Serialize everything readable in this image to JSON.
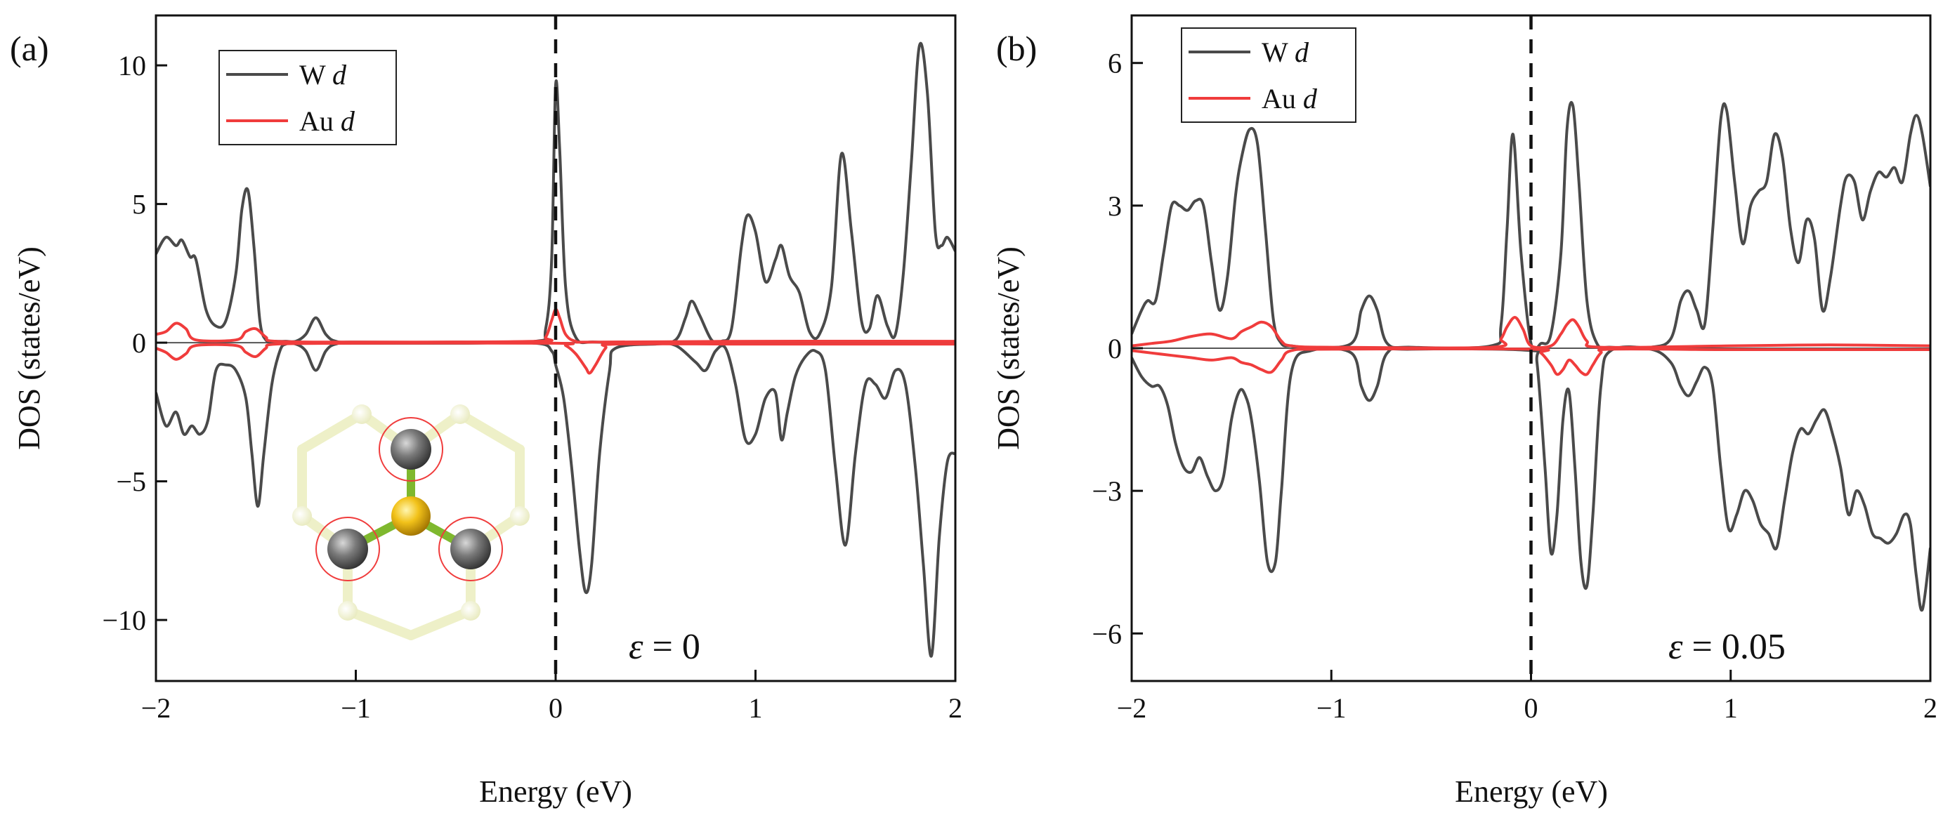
{
  "chart_data": [
    {
      "type": "line",
      "panel_label": "(a)",
      "title": "",
      "xlabel": "Energy (eV)",
      "ylabel": "DOS (states/eV)",
      "xlim": [
        -2,
        2
      ],
      "ylim": [
        -12.2,
        11.8
      ],
      "xticks": [
        -2,
        -1,
        0,
        1,
        2
      ],
      "xtick_labels": [
        "−2",
        "−1",
        "0",
        "1",
        "2"
      ],
      "yticks": [
        -10,
        -5,
        0,
        5,
        10
      ],
      "ytick_labels": [
        "−10",
        "−5",
        "0",
        "5",
        "10"
      ],
      "fermi_level": 0,
      "annotation": {
        "symbol": "ε",
        "text": " = 0"
      },
      "legend_position": "top-left",
      "inset": "top view of Au atom bonded to three W atoms (W atoms circled)",
      "series": [
        {
          "name": "W d",
          "legend_main": "W ",
          "legend_italic": "d",
          "color": "#4a4a4a",
          "spin": "up",
          "x": [
            -2.0,
            -1.95,
            -1.9,
            -1.87,
            -1.83,
            -1.8,
            -1.75,
            -1.7,
            -1.65,
            -1.6,
            -1.57,
            -1.54,
            -1.51,
            -1.48,
            -1.45,
            -1.4,
            -1.35,
            -1.3,
            -1.25,
            -1.2,
            -1.15,
            -1.1,
            -1.0,
            -0.5,
            -0.1,
            -0.05,
            -0.02,
            0.0,
            0.02,
            0.05,
            0.1,
            0.2,
            0.5,
            0.6,
            0.65,
            0.68,
            0.72,
            0.78,
            0.83,
            0.88,
            0.93,
            0.96,
            1.0,
            1.05,
            1.1,
            1.13,
            1.17,
            1.22,
            1.27,
            1.32,
            1.38,
            1.43,
            1.48,
            1.53,
            1.57,
            1.61,
            1.66,
            1.7,
            1.74,
            1.78,
            1.82,
            1.86,
            1.9,
            1.93,
            1.96,
            2.0
          ],
          "y": [
            3.2,
            3.8,
            3.5,
            3.7,
            3.1,
            3.0,
            1.2,
            0.6,
            0.8,
            2.5,
            4.8,
            5.5,
            3.5,
            0.8,
            0.1,
            0.05,
            0.05,
            0.05,
            0.3,
            0.9,
            0.3,
            0.05,
            0.02,
            0.02,
            0.05,
            0.5,
            3.0,
            9.3,
            7.0,
            2.0,
            0.2,
            0.02,
            0.02,
            0.1,
            0.9,
            1.5,
            1.0,
            0.1,
            0.05,
            0.5,
            3.5,
            4.6,
            4.0,
            2.2,
            3.0,
            3.5,
            2.4,
            1.8,
            0.4,
            0.3,
            2.0,
            6.8,
            4.0,
            0.8,
            0.5,
            1.7,
            0.6,
            0.3,
            2.5,
            6.5,
            10.7,
            9.0,
            4.0,
            3.5,
            3.8,
            3.3
          ]
        },
        {
          "name": "W d (spin down)",
          "color": "#4a4a4a",
          "spin": "down",
          "x": [
            -2.0,
            -1.95,
            -1.9,
            -1.86,
            -1.82,
            -1.78,
            -1.74,
            -1.7,
            -1.65,
            -1.6,
            -1.55,
            -1.52,
            -1.49,
            -1.46,
            -1.42,
            -1.38,
            -1.35,
            -1.3,
            -1.25,
            -1.2,
            -1.15,
            -1.1,
            -1.0,
            -0.5,
            -0.1,
            -0.02,
            0.0,
            0.04,
            0.08,
            0.12,
            0.15,
            0.18,
            0.22,
            0.27,
            0.3,
            0.5,
            0.6,
            0.7,
            0.75,
            0.8,
            0.85,
            0.9,
            0.95,
            1.0,
            1.05,
            1.1,
            1.13,
            1.16,
            1.2,
            1.25,
            1.3,
            1.35,
            1.4,
            1.45,
            1.5,
            1.55,
            1.6,
            1.65,
            1.7,
            1.75,
            1.8,
            1.84,
            1.88,
            1.92,
            1.96,
            2.0
          ],
          "y": [
            -1.8,
            -3.0,
            -2.5,
            -3.3,
            -3.0,
            -3.3,
            -2.8,
            -1.0,
            -0.8,
            -1.0,
            -2.0,
            -4.0,
            -5.9,
            -4.0,
            -1.5,
            -0.3,
            -0.05,
            -0.05,
            -0.3,
            -1.0,
            -0.3,
            -0.05,
            -0.02,
            -0.02,
            -0.02,
            -0.3,
            -0.8,
            -2.0,
            -4.5,
            -7.5,
            -9.0,
            -8.0,
            -4.0,
            -1.0,
            -0.2,
            -0.05,
            -0.1,
            -0.7,
            -1.0,
            -0.3,
            -0.2,
            -1.5,
            -3.5,
            -3.3,
            -2.0,
            -1.8,
            -3.5,
            -2.5,
            -1.2,
            -0.5,
            -0.3,
            -1.0,
            -4.5,
            -7.3,
            -4.0,
            -1.5,
            -1.5,
            -2.0,
            -1.0,
            -1.5,
            -4.5,
            -8.0,
            -11.3,
            -7.0,
            -4.3,
            -4.0
          ]
        },
        {
          "name": "Au d",
          "legend_main": "Au ",
          "legend_italic": "d",
          "color": "#f03c3c",
          "spin": "up",
          "x": [
            -2.0,
            -1.95,
            -1.9,
            -1.85,
            -1.8,
            -1.6,
            -1.55,
            -1.5,
            -1.45,
            -1.4,
            -1.0,
            -0.1,
            -0.05,
            -0.02,
            0.0,
            0.02,
            0.05,
            0.1,
            0.2,
            1.0,
            2.0
          ],
          "y": [
            0.3,
            0.4,
            0.7,
            0.5,
            0.1,
            0.1,
            0.4,
            0.5,
            0.2,
            0.05,
            0.02,
            0.05,
            0.2,
            0.8,
            1.2,
            0.9,
            0.3,
            0.05,
            0.02,
            0.05,
            0.05
          ]
        },
        {
          "name": "Au d (spin down)",
          "color": "#f03c3c",
          "spin": "down",
          "x": [
            -2.0,
            -1.95,
            -1.9,
            -1.85,
            -1.8,
            -1.6,
            -1.55,
            -1.5,
            -1.45,
            -1.4,
            -1.0,
            0.0,
            0.05,
            0.1,
            0.15,
            0.17,
            0.2,
            0.25,
            0.3,
            1.0,
            2.0
          ],
          "y": [
            -0.2,
            -0.35,
            -0.6,
            -0.4,
            -0.1,
            -0.1,
            -0.35,
            -0.5,
            -0.2,
            -0.05,
            -0.02,
            -0.02,
            -0.1,
            -0.4,
            -0.9,
            -1.1,
            -0.8,
            -0.2,
            -0.05,
            -0.05,
            -0.05
          ]
        }
      ]
    },
    {
      "type": "line",
      "panel_label": "(b)",
      "title": "",
      "xlabel": "Energy (eV)",
      "ylabel": "DOS (states/eV)",
      "xlim": [
        -2,
        2
      ],
      "ylim": [
        -7.0,
        7.0
      ],
      "xticks": [
        -2,
        -1,
        0,
        1,
        2
      ],
      "xtick_labels": [
        "−2",
        "−1",
        "0",
        "1",
        "2"
      ],
      "yticks": [
        -6,
        -3,
        0,
        3,
        6
      ],
      "ytick_labels": [
        "−6",
        "−3",
        "0",
        "3",
        "6"
      ],
      "fermi_level": 0,
      "annotation": {
        "symbol": "ε",
        "text": " = 0.05"
      },
      "legend_position": "top-left",
      "series": [
        {
          "name": "W d",
          "legend_main": "W ",
          "legend_italic": "d",
          "color": "#4a4a4a",
          "spin": "up",
          "x": [
            -2.0,
            -1.95,
            -1.92,
            -1.88,
            -1.84,
            -1.8,
            -1.76,
            -1.72,
            -1.68,
            -1.64,
            -1.6,
            -1.56,
            -1.52,
            -1.48,
            -1.45,
            -1.41,
            -1.37,
            -1.33,
            -1.29,
            -1.25,
            -1.2,
            -1.1,
            -0.9,
            -0.85,
            -0.81,
            -0.77,
            -0.72,
            -0.6,
            -0.2,
            -0.15,
            -0.12,
            -0.09,
            -0.05,
            0.0,
            0.05,
            0.1,
            0.15,
            0.18,
            0.21,
            0.24,
            0.28,
            0.33,
            0.4,
            0.6,
            0.7,
            0.75,
            0.79,
            0.83,
            0.87,
            0.91,
            0.95,
            0.98,
            1.02,
            1.06,
            1.1,
            1.14,
            1.18,
            1.22,
            1.26,
            1.3,
            1.34,
            1.38,
            1.42,
            1.46,
            1.5,
            1.55,
            1.58,
            1.62,
            1.66,
            1.7,
            1.74,
            1.78,
            1.82,
            1.86,
            1.9,
            1.93,
            1.96,
            2.0
          ],
          "y": [
            0.3,
            0.8,
            1.0,
            1.0,
            2.0,
            3.0,
            3.0,
            2.9,
            3.1,
            3.0,
            1.8,
            0.8,
            1.5,
            3.2,
            4.0,
            4.6,
            4.3,
            2.5,
            0.6,
            0.1,
            0.05,
            0.02,
            0.1,
            0.8,
            1.1,
            0.8,
            0.1,
            0.02,
            0.05,
            0.5,
            2.5,
            4.5,
            2.0,
            0.1,
            0.1,
            0.3,
            2.0,
            4.6,
            5.1,
            3.5,
            1.0,
            0.1,
            0.02,
            0.02,
            0.2,
            1.0,
            1.2,
            0.8,
            0.5,
            2.5,
            4.8,
            5.0,
            3.5,
            2.2,
            3.0,
            3.3,
            3.5,
            4.5,
            4.0,
            2.5,
            1.8,
            2.7,
            2.3,
            0.8,
            1.5,
            3.0,
            3.6,
            3.5,
            2.7,
            3.3,
            3.7,
            3.6,
            3.8,
            3.5,
            4.5,
            4.9,
            4.5,
            3.4
          ]
        },
        {
          "name": "W d (spin down)",
          "color": "#4a4a4a",
          "spin": "down",
          "x": [
            -2.0,
            -1.95,
            -1.9,
            -1.86,
            -1.82,
            -1.78,
            -1.74,
            -1.7,
            -1.66,
            -1.62,
            -1.58,
            -1.54,
            -1.5,
            -1.46,
            -1.43,
            -1.4,
            -1.36,
            -1.32,
            -1.28,
            -1.25,
            -1.2,
            -1.1,
            -0.9,
            -0.85,
            -0.81,
            -0.77,
            -0.72,
            -0.6,
            0.0,
            0.03,
            0.07,
            0.1,
            0.13,
            0.16,
            0.19,
            0.22,
            0.25,
            0.28,
            0.31,
            0.35,
            0.4,
            0.6,
            0.7,
            0.75,
            0.79,
            0.83,
            0.87,
            0.91,
            0.95,
            0.99,
            1.03,
            1.07,
            1.11,
            1.15,
            1.19,
            1.23,
            1.27,
            1.31,
            1.35,
            1.39,
            1.43,
            1.47,
            1.51,
            1.55,
            1.59,
            1.63,
            1.67,
            1.71,
            1.75,
            1.79,
            1.83,
            1.87,
            1.9,
            1.93,
            1.96,
            2.0
          ],
          "y": [
            -0.2,
            -0.6,
            -0.8,
            -0.8,
            -1.2,
            -2.0,
            -2.5,
            -2.6,
            -2.3,
            -2.7,
            -3.0,
            -2.7,
            -1.5,
            -0.9,
            -1.0,
            -1.5,
            -2.8,
            -4.5,
            -4.5,
            -3.0,
            -0.5,
            -0.05,
            -0.1,
            -0.8,
            -1.1,
            -0.8,
            -0.1,
            -0.02,
            -0.05,
            -0.3,
            -2.5,
            -4.3,
            -3.5,
            -1.5,
            -0.9,
            -2.5,
            -4.5,
            -5.0,
            -3.5,
            -0.8,
            -0.05,
            -0.02,
            -0.3,
            -0.8,
            -1.0,
            -0.7,
            -0.4,
            -0.8,
            -2.5,
            -3.8,
            -3.5,
            -3.0,
            -3.2,
            -3.7,
            -3.9,
            -4.2,
            -3.2,
            -2.2,
            -1.7,
            -1.8,
            -1.5,
            -1.3,
            -1.8,
            -2.5,
            -3.5,
            -3.0,
            -3.3,
            -3.9,
            -4.0,
            -4.1,
            -3.9,
            -3.5,
            -3.7,
            -4.8,
            -5.5,
            -4.2
          ]
        },
        {
          "name": "Au d",
          "legend_main": "Au ",
          "legend_italic": "d",
          "color": "#f03c3c",
          "spin": "up",
          "x": [
            -2.0,
            -1.9,
            -1.8,
            -1.7,
            -1.6,
            -1.5,
            -1.45,
            -1.4,
            -1.35,
            -1.3,
            -1.25,
            -1.2,
            -1.0,
            -0.2,
            -0.15,
            -0.12,
            -0.08,
            -0.04,
            0.0,
            0.1,
            0.15,
            0.18,
            0.21,
            0.24,
            0.28,
            0.35,
            1.0,
            1.5,
            2.0
          ],
          "y": [
            0.05,
            0.1,
            0.15,
            0.25,
            0.3,
            0.2,
            0.35,
            0.45,
            0.55,
            0.45,
            0.15,
            0.05,
            0.02,
            0.02,
            0.2,
            0.45,
            0.65,
            0.4,
            0.05,
            0.05,
            0.3,
            0.5,
            0.6,
            0.45,
            0.15,
            0.02,
            0.05,
            0.07,
            0.05
          ]
        },
        {
          "name": "Au d (spin down)",
          "color": "#f03c3c",
          "spin": "down",
          "x": [
            -2.0,
            -1.9,
            -1.8,
            -1.7,
            -1.6,
            -1.5,
            -1.45,
            -1.4,
            -1.35,
            -1.3,
            -1.25,
            -1.2,
            -1.0,
            0.0,
            0.05,
            0.1,
            0.13,
            0.16,
            0.19,
            0.22,
            0.25,
            0.28,
            0.31,
            0.35,
            0.4,
            1.0,
            1.5,
            2.0
          ],
          "y": [
            -0.05,
            -0.1,
            -0.15,
            -0.2,
            -0.25,
            -0.2,
            -0.3,
            -0.35,
            -0.45,
            -0.5,
            -0.25,
            -0.05,
            -0.02,
            -0.02,
            -0.1,
            -0.35,
            -0.55,
            -0.45,
            -0.25,
            -0.35,
            -0.5,
            -0.55,
            -0.35,
            -0.1,
            -0.02,
            -0.03,
            -0.03,
            -0.03
          ]
        }
      ]
    }
  ]
}
